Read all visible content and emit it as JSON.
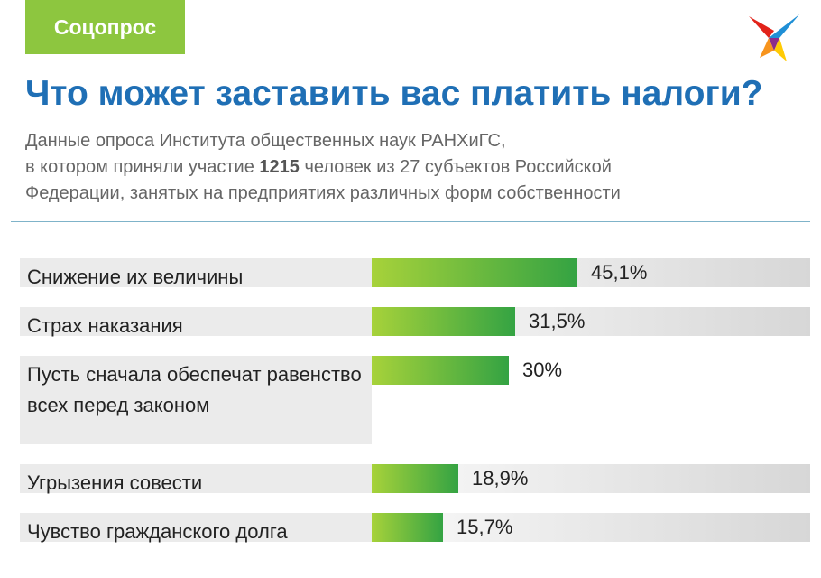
{
  "badge": "Соцопрос",
  "colors": {
    "badge": "#8dc63f",
    "title": "#1f6fb5",
    "bar_start": "#a7d23a",
    "bar_end": "#34a343",
    "label_bg": "#ebebeb"
  },
  "logo": {
    "icon": "bird-logo-icon"
  },
  "subtitle": {
    "line1": "Данные опроса Института общественных наук РАНХиГС,",
    "line2_before": "в котором приняли участие ",
    "line2_bold": "1215",
    "line2_after": " человек из 27 субъектов Российской",
    "line3": "Федерации, занятых на предприятиях различных форм собственности"
  },
  "chart_data": {
    "type": "bar",
    "orientation": "horizontal",
    "title": "Что может заставить вас платить налоги?",
    "categories": [
      "Снижение их величины",
      "Страх наказания",
      "Пусть сначала обеспечат равенство всех перед законом",
      "Угрызения совести",
      "Чувство гражданского долга"
    ],
    "values": [
      45.1,
      31.5,
      30,
      18.9,
      15.7
    ],
    "value_labels": [
      "45,1%",
      "31,5%",
      "30%",
      "18,9%",
      "15,7%"
    ],
    "unit": "%",
    "xlim": [
      0,
      100
    ],
    "grid": false
  }
}
